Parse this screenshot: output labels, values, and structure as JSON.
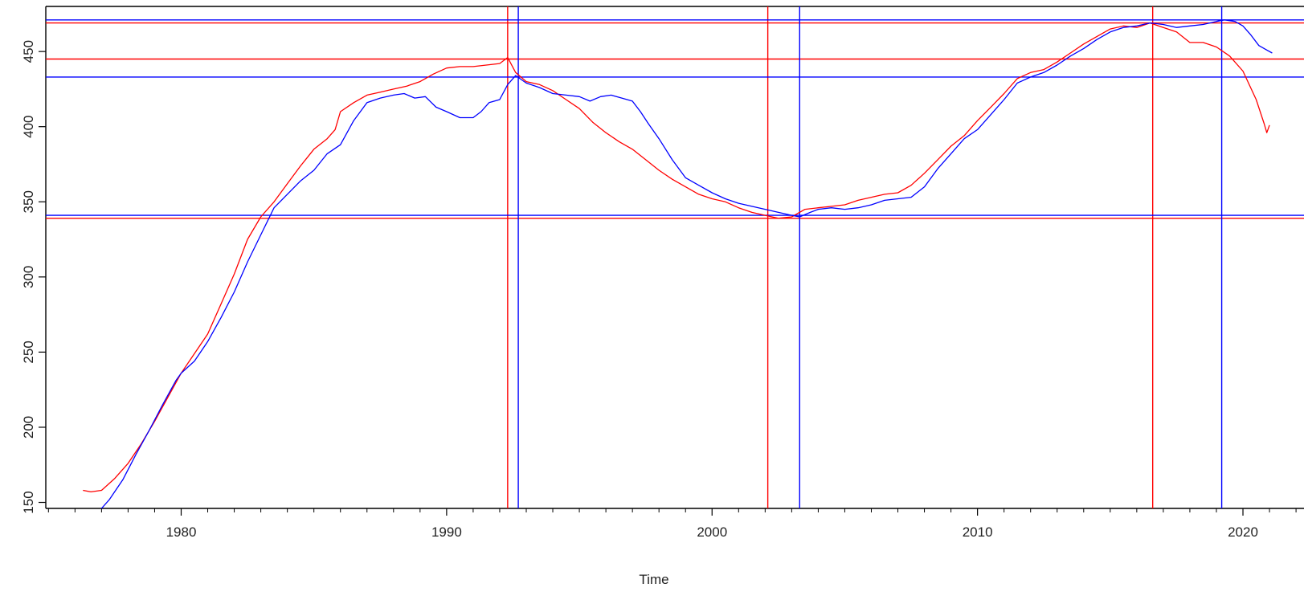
{
  "chart_data": {
    "type": "line",
    "title": "",
    "xlabel": "Time",
    "ylabel": "",
    "xlim": [
      1974.9,
      2022.3
    ],
    "ylim": [
      146,
      480
    ],
    "x_ticks": [
      1980,
      1990,
      2000,
      2010,
      2020
    ],
    "y_ticks": [
      150,
      200,
      250,
      300,
      350,
      400,
      450
    ],
    "x_tick_labels": [
      "1980",
      "1990",
      "2000",
      "2010",
      "2020"
    ],
    "y_tick_labels": [
      "150",
      "200",
      "250",
      "300",
      "350",
      "400",
      "450"
    ],
    "grid": false,
    "legend": "none",
    "series": [
      {
        "color": "#ff0000",
        "points": [
          [
            1976.3,
            158
          ],
          [
            1976.6,
            157
          ],
          [
            1977.0,
            158
          ],
          [
            1977.5,
            166
          ],
          [
            1978.0,
            176
          ],
          [
            1978.5,
            189
          ],
          [
            1979.0,
            204
          ],
          [
            1979.5,
            220
          ],
          [
            1980.0,
            236
          ],
          [
            1980.5,
            249
          ],
          [
            1981.0,
            262
          ],
          [
            1981.5,
            282
          ],
          [
            1982.0,
            302
          ],
          [
            1982.5,
            325
          ],
          [
            1983.0,
            340
          ],
          [
            1983.5,
            350
          ],
          [
            1984.0,
            362
          ],
          [
            1984.5,
            374
          ],
          [
            1985.0,
            385
          ],
          [
            1985.5,
            392
          ],
          [
            1985.8,
            398
          ],
          [
            1986.0,
            410
          ],
          [
            1986.5,
            416
          ],
          [
            1987.0,
            421
          ],
          [
            1987.5,
            423
          ],
          [
            1988.0,
            425
          ],
          [
            1988.5,
            427
          ],
          [
            1989.0,
            430
          ],
          [
            1989.5,
            435
          ],
          [
            1990.0,
            439
          ],
          [
            1990.5,
            440
          ],
          [
            1991.0,
            440
          ],
          [
            1991.5,
            441
          ],
          [
            1992.0,
            442
          ],
          [
            1992.3,
            446
          ],
          [
            1992.6,
            436
          ],
          [
            1993.0,
            430
          ],
          [
            1993.5,
            428
          ],
          [
            1994.0,
            424
          ],
          [
            1994.5,
            418
          ],
          [
            1995.0,
            412
          ],
          [
            1995.5,
            403
          ],
          [
            1996.0,
            396
          ],
          [
            1996.5,
            390
          ],
          [
            1997.0,
            385
          ],
          [
            1997.5,
            378
          ],
          [
            1998.0,
            371
          ],
          [
            1998.5,
            365
          ],
          [
            1999.0,
            360
          ],
          [
            1999.5,
            355
          ],
          [
            2000.0,
            352
          ],
          [
            2000.5,
            350
          ],
          [
            2001.0,
            346
          ],
          [
            2001.5,
            343
          ],
          [
            2002.0,
            341
          ],
          [
            2002.5,
            339
          ],
          [
            2003.0,
            340
          ],
          [
            2003.5,
            345
          ],
          [
            2004.0,
            346
          ],
          [
            2004.5,
            347
          ],
          [
            2005.0,
            348
          ],
          [
            2005.5,
            351
          ],
          [
            2006.0,
            353
          ],
          [
            2006.5,
            355
          ],
          [
            2007.0,
            356
          ],
          [
            2007.5,
            361
          ],
          [
            2008.0,
            369
          ],
          [
            2008.5,
            378
          ],
          [
            2009.0,
            387
          ],
          [
            2009.5,
            394
          ],
          [
            2010.0,
            404
          ],
          [
            2010.5,
            413
          ],
          [
            2011.0,
            422
          ],
          [
            2011.5,
            432
          ],
          [
            2012.0,
            436
          ],
          [
            2012.5,
            438
          ],
          [
            2013.0,
            443
          ],
          [
            2013.5,
            449
          ],
          [
            2014.0,
            455
          ],
          [
            2014.5,
            460
          ],
          [
            2015.0,
            465
          ],
          [
            2015.5,
            467
          ],
          [
            2016.0,
            466
          ],
          [
            2016.5,
            469
          ],
          [
            2017.0,
            466
          ],
          [
            2017.5,
            463
          ],
          [
            2018.0,
            456
          ],
          [
            2018.5,
            456
          ],
          [
            2019.0,
            453
          ],
          [
            2019.5,
            447
          ],
          [
            2020.0,
            437
          ],
          [
            2020.5,
            418
          ],
          [
            2020.8,
            402
          ],
          [
            2020.9,
            396
          ],
          [
            2021.0,
            401
          ]
        ]
      },
      {
        "color": "#0000ff",
        "points": [
          [
            1976.4,
            145
          ],
          [
            1976.9,
            144
          ],
          [
            1977.3,
            152
          ],
          [
            1977.8,
            165
          ],
          [
            1978.3,
            182
          ],
          [
            1978.8,
            198
          ],
          [
            1979.3,
            215
          ],
          [
            1979.8,
            231
          ],
          [
            1980.0,
            236
          ],
          [
            1980.5,
            244
          ],
          [
            1981.0,
            257
          ],
          [
            1981.5,
            273
          ],
          [
            1982.0,
            290
          ],
          [
            1982.5,
            310
          ],
          [
            1983.0,
            328
          ],
          [
            1983.5,
            346
          ],
          [
            1984.0,
            355
          ],
          [
            1984.5,
            364
          ],
          [
            1985.0,
            371
          ],
          [
            1985.5,
            382
          ],
          [
            1986.0,
            388
          ],
          [
            1986.5,
            404
          ],
          [
            1987.0,
            416
          ],
          [
            1987.5,
            419
          ],
          [
            1988.0,
            421
          ],
          [
            1988.4,
            422
          ],
          [
            1988.8,
            419
          ],
          [
            1989.2,
            420
          ],
          [
            1989.6,
            413
          ],
          [
            1990.0,
            410
          ],
          [
            1990.5,
            406
          ],
          [
            1991.0,
            406
          ],
          [
            1991.3,
            410
          ],
          [
            1991.6,
            416
          ],
          [
            1992.0,
            418
          ],
          [
            1992.3,
            428
          ],
          [
            1992.6,
            434
          ],
          [
            1993.0,
            429
          ],
          [
            1993.5,
            426
          ],
          [
            1994.0,
            422
          ],
          [
            1994.5,
            421
          ],
          [
            1995.0,
            420
          ],
          [
            1995.4,
            417
          ],
          [
            1995.8,
            420
          ],
          [
            1996.2,
            421
          ],
          [
            1996.6,
            419
          ],
          [
            1997.0,
            417
          ],
          [
            1997.3,
            410
          ],
          [
            1997.6,
            402
          ],
          [
            1998.0,
            392
          ],
          [
            1998.5,
            378
          ],
          [
            1999.0,
            366
          ],
          [
            1999.5,
            361
          ],
          [
            2000.0,
            356
          ],
          [
            2000.5,
            352
          ],
          [
            2001.0,
            349
          ],
          [
            2001.5,
            347
          ],
          [
            2002.0,
            345
          ],
          [
            2002.5,
            343
          ],
          [
            2003.0,
            341
          ],
          [
            2003.3,
            340
          ],
          [
            2003.7,
            343
          ],
          [
            2004.0,
            345
          ],
          [
            2004.5,
            346
          ],
          [
            2005.0,
            345
          ],
          [
            2005.5,
            346
          ],
          [
            2006.0,
            348
          ],
          [
            2006.5,
            351
          ],
          [
            2007.0,
            352
          ],
          [
            2007.5,
            353
          ],
          [
            2008.0,
            360
          ],
          [
            2008.5,
            372
          ],
          [
            2009.0,
            382
          ],
          [
            2009.5,
            392
          ],
          [
            2010.0,
            398
          ],
          [
            2010.5,
            408
          ],
          [
            2011.0,
            418
          ],
          [
            2011.5,
            429
          ],
          [
            2012.0,
            433
          ],
          [
            2012.5,
            436
          ],
          [
            2013.0,
            441
          ],
          [
            2013.5,
            447
          ],
          [
            2014.0,
            452
          ],
          [
            2014.5,
            458
          ],
          [
            2015.0,
            463
          ],
          [
            2015.5,
            466
          ],
          [
            2016.0,
            467
          ],
          [
            2016.5,
            469
          ],
          [
            2017.0,
            468
          ],
          [
            2017.5,
            466
          ],
          [
            2018.0,
            467
          ],
          [
            2018.5,
            468
          ],
          [
            2019.0,
            470
          ],
          [
            2019.3,
            471
          ],
          [
            2019.7,
            470
          ],
          [
            2020.0,
            467
          ],
          [
            2020.3,
            461
          ],
          [
            2020.6,
            454
          ],
          [
            2020.9,
            451
          ],
          [
            2021.1,
            449
          ]
        ]
      }
    ],
    "reference_lines": {
      "red": {
        "color": "#ff0000",
        "x": [
          1992.3,
          2002.1,
          2016.6
        ],
        "y": [
          339,
          445,
          469
        ]
      },
      "blue": {
        "color": "#0000ff",
        "x": [
          1992.7,
          2003.3,
          2019.2
        ],
        "y": [
          341,
          433,
          471
        ]
      }
    }
  }
}
